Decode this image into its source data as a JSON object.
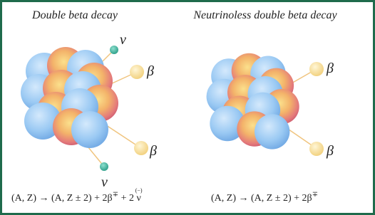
{
  "left": {
    "title": "Double beta decay",
    "labels": {
      "nu_top": "ν",
      "beta_top": "β",
      "beta_bottom": "β",
      "nu_bottom": "ν"
    },
    "equation": {
      "main": "(A, Z) → (A, Z ± 2) + 2β",
      "sup": "∓",
      "rest": " + 2 ",
      "overset": "(−)",
      "nu": "ν"
    }
  },
  "right": {
    "title": "Neutrinoless double beta decay",
    "labels": {
      "beta_top": "β",
      "beta_bottom": "β"
    },
    "equation": {
      "main": "(A, Z) → (A, Z ± 2) + 2β",
      "sup": "∓"
    }
  }
}
